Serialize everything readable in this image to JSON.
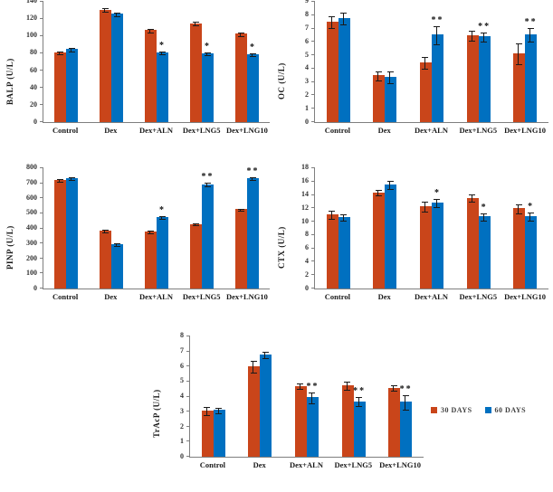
{
  "legend": {
    "items": [
      {
        "label": "30 DAYS",
        "color": "#C9451A"
      },
      {
        "label": "60 DAYS",
        "color": "#0070C0"
      }
    ]
  },
  "chart_data": [
    {
      "type": "bar",
      "ylabel": "BALP (U/L)",
      "xlabel": "",
      "ylim": [
        0,
        140
      ],
      "ytick_step": 20,
      "grid": false,
      "categories": [
        "Control",
        "Dex",
        "Dex+ALN",
        "Dex+LNG5",
        "Dex+LNG10"
      ],
      "series": [
        {
          "name": "30 DAYS",
          "color": "#C9451A",
          "values": [
            81,
            131,
            107,
            115,
            103
          ],
          "errors": [
            1.5,
            1.5,
            1.5,
            1.5,
            1.5
          ],
          "sig": [
            "",
            "",
            "",
            "",
            ""
          ]
        },
        {
          "name": "60 DAYS",
          "color": "#0070C0",
          "values": [
            85,
            126,
            81,
            80,
            79
          ],
          "errors": [
            1.5,
            1.5,
            1.5,
            1.5,
            1.5
          ],
          "sig": [
            "",
            "",
            "*",
            "*",
            "*"
          ]
        }
      ]
    },
    {
      "type": "bar",
      "ylabel": "OC (U/L)",
      "xlabel": "",
      "ylim": [
        0,
        9
      ],
      "ytick_step": 1,
      "grid": false,
      "categories": [
        "Control",
        "Dex",
        "Dex+ALN",
        "Dex+LNG5",
        "Dex+LNG10"
      ],
      "series": [
        {
          "name": "30 DAYS",
          "color": "#C9451A",
          "values": [
            7.5,
            3.5,
            4.45,
            6.5,
            5.15
          ],
          "errors": [
            0.4,
            0.3,
            0.4,
            0.35,
            0.75
          ],
          "sig": [
            "",
            "",
            "",
            "",
            ""
          ]
        },
        {
          "name": "60 DAYS",
          "color": "#0070C0",
          "values": [
            7.8,
            3.4,
            6.55,
            6.4,
            6.55
          ],
          "errors": [
            0.4,
            0.4,
            0.65,
            0.3,
            0.48
          ],
          "sig": [
            "",
            "",
            "**",
            "**",
            "**"
          ]
        }
      ]
    },
    {
      "type": "bar",
      "ylabel": "PINP (U/L)",
      "xlabel": "",
      "ylim": [
        0,
        800
      ],
      "ytick_step": 100,
      "grid": false,
      "categories": [
        "Control",
        "Dex",
        "Dex+ALN",
        "Dex+LNG5",
        "Dex+LNG10"
      ],
      "series": [
        {
          "name": "30 DAYS",
          "color": "#C9451A",
          "values": [
            720,
            387,
            380,
            430,
            527
          ],
          "errors": [
            6,
            5,
            5,
            5,
            5
          ],
          "sig": [
            "",
            "",
            "",
            "",
            ""
          ]
        },
        {
          "name": "60 DAYS",
          "color": "#0070C0",
          "values": [
            735,
            295,
            475,
            693,
            735
          ],
          "errors": [
            6,
            6,
            6,
            8,
            6
          ],
          "sig": [
            "",
            "",
            "*",
            "**",
            "**"
          ]
        }
      ]
    },
    {
      "type": "bar",
      "ylabel": "CTX (U/L)",
      "xlabel": "",
      "ylim": [
        0,
        18
      ],
      "ytick_step": 2,
      "grid": false,
      "categories": [
        "Control",
        "Dex",
        "Dex+ALN",
        "Dex+LNG5",
        "Dex+LNG10"
      ],
      "series": [
        {
          "name": "30 DAYS",
          "color": "#C9451A",
          "values": [
            11.1,
            14.4,
            12.3,
            13.6,
            12.0
          ],
          "errors": [
            0.5,
            0.35,
            0.65,
            0.45,
            0.65
          ],
          "sig": [
            "",
            "",
            "",
            "",
            ""
          ]
        },
        {
          "name": "60 DAYS",
          "color": "#0070C0",
          "values": [
            10.7,
            15.6,
            12.85,
            10.8,
            10.8
          ],
          "errors": [
            0.45,
            0.55,
            0.55,
            0.5,
            0.55
          ],
          "sig": [
            "",
            "",
            "*",
            "*",
            "*"
          ]
        }
      ]
    },
    {
      "type": "bar",
      "ylabel": "TrAcP (U/L)",
      "xlabel": "",
      "ylim": [
        0,
        8
      ],
      "ytick_step": 1,
      "grid": false,
      "categories": [
        "Control",
        "Dex",
        "Dex+ALN",
        "Dex+LNG5",
        "Dex+LNG10"
      ],
      "series": [
        {
          "name": "30 DAYS",
          "color": "#C9451A",
          "values": [
            3.05,
            6.0,
            4.7,
            4.75,
            4.6
          ],
          "errors": [
            0.25,
            0.35,
            0.15,
            0.25,
            0.15
          ],
          "sig": [
            "",
            "",
            "",
            "",
            ""
          ]
        },
        {
          "name": "60 DAYS",
          "color": "#0070C0",
          "values": [
            3.1,
            6.8,
            3.95,
            3.7,
            3.65
          ],
          "errors": [
            0.15,
            0.2,
            0.35,
            0.3,
            0.45
          ],
          "sig": [
            "",
            "",
            "**",
            "**",
            "**"
          ]
        }
      ]
    }
  ]
}
